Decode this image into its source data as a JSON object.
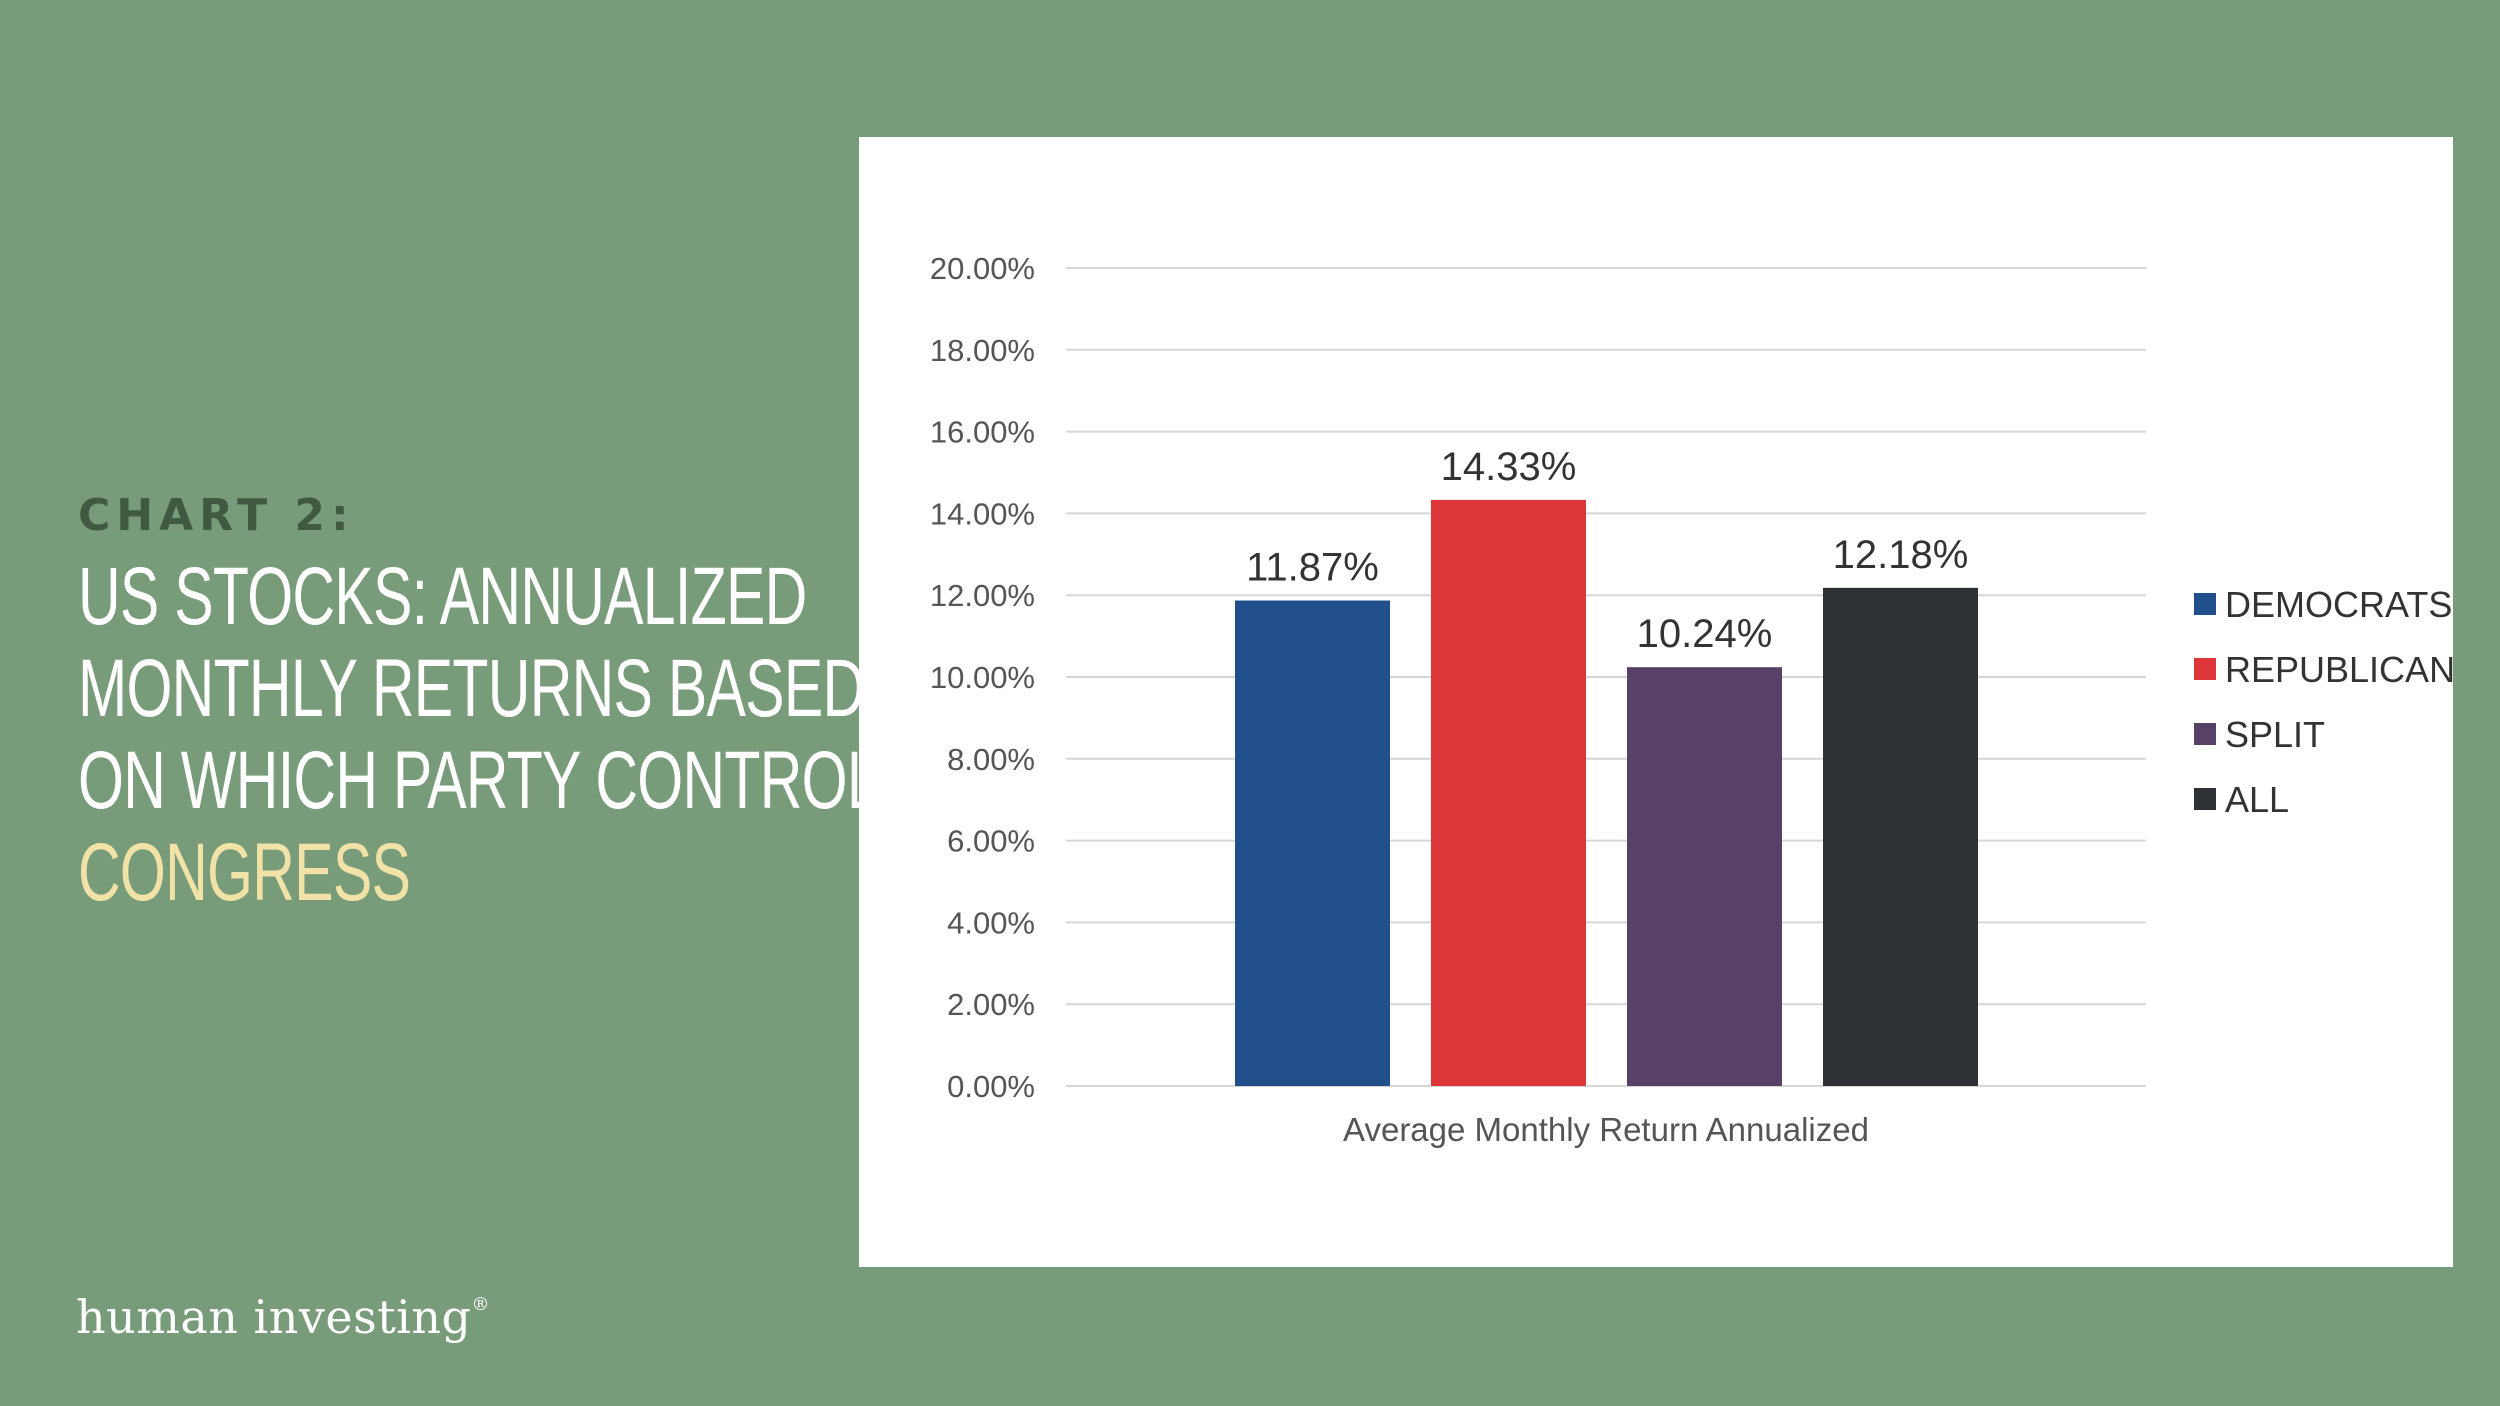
{
  "heading": {
    "chart_label": "CHART 2:",
    "lines": [
      "US STOCKS: ANNUALIZED",
      "MONTHLY RETURNS BASED",
      "ON WHICH PARTY CONTROLS"
    ],
    "highlight": "CONGRESS"
  },
  "brand": {
    "name": "human investing",
    "mark": "®"
  },
  "colors": {
    "background": "#789b79",
    "heading_highlight": "#f1e3a7",
    "democrats": "#214f8c",
    "republicans": "#dd3638",
    "split": "#574167",
    "all": "#2e3135"
  },
  "chart_data": {
    "type": "bar",
    "categories": [
      "Average Monthly Return Annualized"
    ],
    "series": [
      {
        "name": "DEMOCRATS",
        "values": [
          11.87
        ],
        "label": "11.87%"
      },
      {
        "name": "REPUBLICANS",
        "values": [
          14.33
        ],
        "label": "14.33%"
      },
      {
        "name": "SPLIT",
        "values": [
          10.24
        ],
        "label": "10.24%"
      },
      {
        "name": "ALL",
        "values": [
          12.18
        ],
        "label": "12.18%"
      }
    ],
    "ylim": [
      0,
      20
    ],
    "yticks": [
      "0.00%",
      "2.00%",
      "4.00%",
      "6.00%",
      "8.00%",
      "10.00%",
      "12.00%",
      "14.00%",
      "16.00%",
      "18.00%",
      "20.00%"
    ],
    "grid": true,
    "legend_position": "right"
  }
}
